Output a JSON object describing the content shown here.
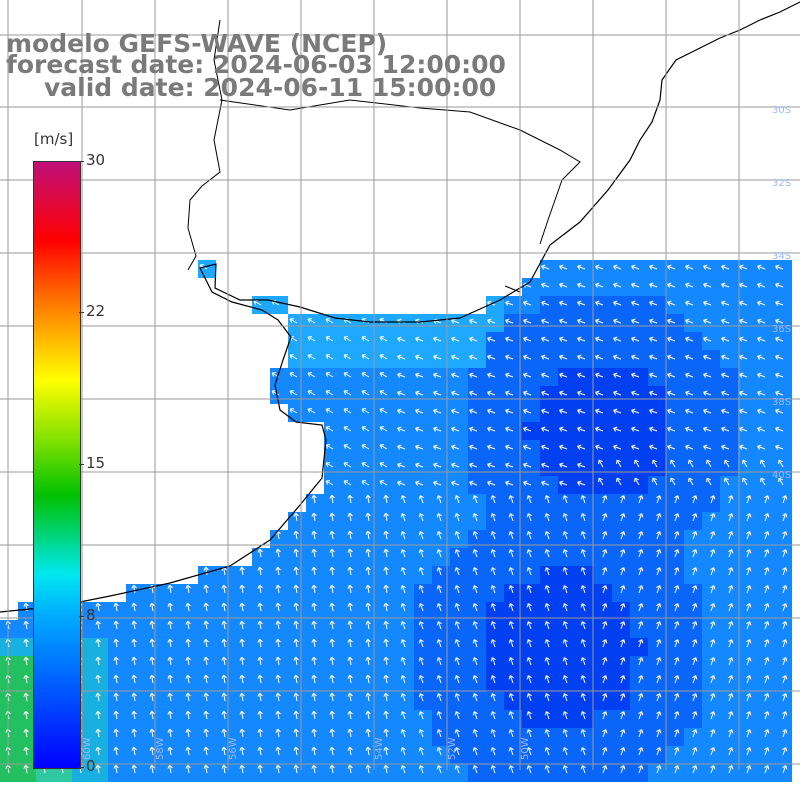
{
  "title": {
    "line1": "modelo GEFS-WAVE (NCEP)",
    "line2": "forecast date: 2024-06-03 12:00:00",
    "line3": "valid date: 2024-06-11 15:00:00"
  },
  "colorbar": {
    "unit": "[m/s]",
    "ticks": [
      "30",
      "22",
      "15",
      "8",
      "0"
    ],
    "min": 0,
    "max": 30,
    "colors": [
      "#0000ff",
      "#00aaff",
      "#00e8f0",
      "#00c000",
      "#80e000",
      "#ffff00",
      "#ff8000",
      "#ff0000",
      "#c0107a"
    ]
  },
  "map": {
    "variable": "wind speed",
    "ocean_base_color": "#1a8cff",
    "land_color": "#ffffff",
    "coastline_color": "#000000",
    "grid_color": "#9a9a9a",
    "lat_labels": [
      "30S",
      "32S",
      "34S",
      "36S",
      "38S",
      "40S"
    ],
    "lon_labels": [
      "60W",
      "58W",
      "56W",
      "54W",
      "52W",
      "50W"
    ]
  }
}
